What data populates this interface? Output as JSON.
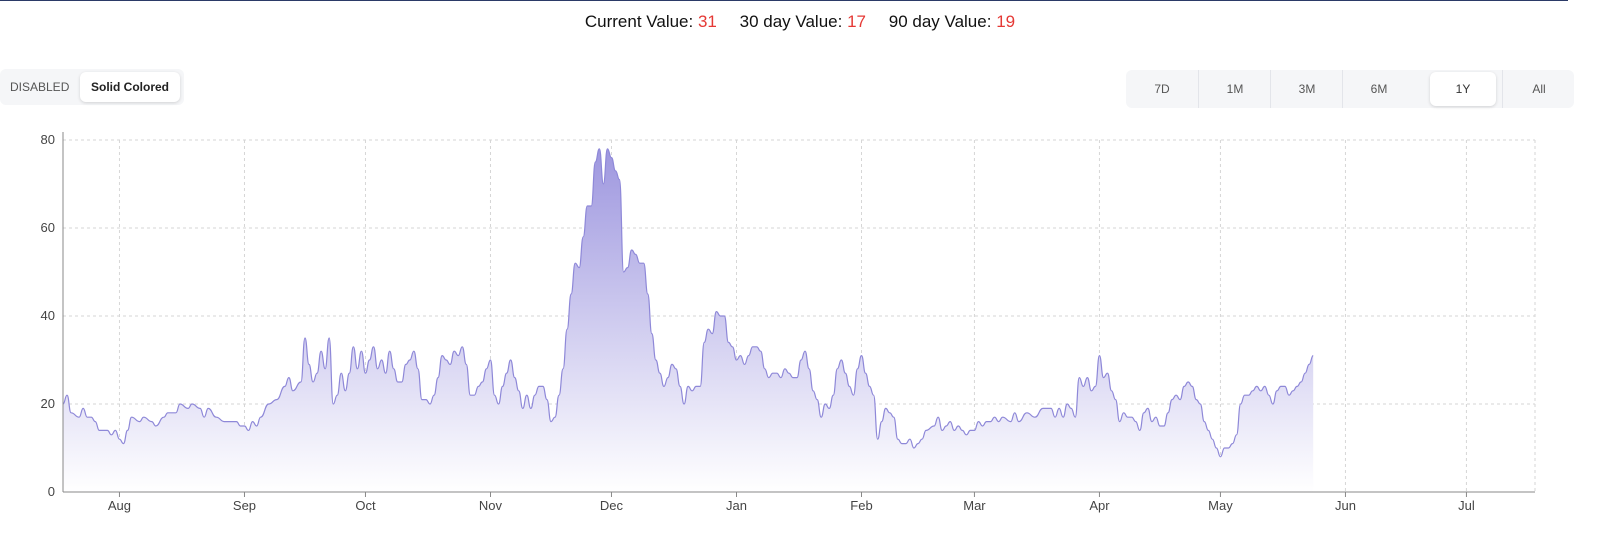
{
  "header": {
    "current_label": "Current Value:",
    "current_value": "31",
    "d30_label": "30 day Value:",
    "d30_value": "17",
    "d90_label": "90 day Value:",
    "d90_value": "19"
  },
  "style_toggle": {
    "disabled_label": "DISABLED",
    "solid_label": "Solid Colored",
    "selected": "Solid Colored"
  },
  "ranges": {
    "items": [
      "7D",
      "1M",
      "3M",
      "6M",
      "1Y",
      "All"
    ],
    "selected": "1Y"
  },
  "colors": {
    "line": "#8e88d8",
    "fill_top": "#9e97df",
    "fill_bottom": "#ffffff",
    "value_accent": "#e53935"
  },
  "chart_data": {
    "type": "area",
    "ylim": [
      0,
      80
    ],
    "yticks": [
      "0",
      "20",
      "40",
      "60",
      "80"
    ],
    "grid": true,
    "x_month_ticks": [
      {
        "label": "Aug",
        "day": 14
      },
      {
        "label": "Sep",
        "day": 45
      },
      {
        "label": "Oct",
        "day": 75
      },
      {
        "label": "Nov",
        "day": 106
      },
      {
        "label": "Dec",
        "day": 136
      },
      {
        "label": "Jan",
        "day": 167
      },
      {
        "label": "Feb",
        "day": 198
      },
      {
        "label": "Mar",
        "day": 226
      },
      {
        "label": "Apr",
        "day": 257
      },
      {
        "label": "May",
        "day": 287
      },
      {
        "label": "Jun",
        "day": 318
      },
      {
        "label": "Jul",
        "day": 348
      }
    ],
    "x_day_range": [
      0,
      365
    ],
    "points": [
      [
        0,
        20
      ],
      [
        1,
        22
      ],
      [
        2,
        18
      ],
      [
        4,
        17
      ],
      [
        5,
        19
      ],
      [
        6,
        17
      ],
      [
        7,
        17
      ],
      [
        8,
        16
      ],
      [
        9,
        14
      ],
      [
        11,
        14
      ],
      [
        12,
        13
      ],
      [
        13,
        14
      ],
      [
        14,
        12
      ],
      [
        15,
        11
      ],
      [
        16,
        14
      ],
      [
        17,
        17
      ],
      [
        19,
        16
      ],
      [
        20,
        17
      ],
      [
        22,
        16
      ],
      [
        23,
        15
      ],
      [
        25,
        17
      ],
      [
        26,
        18
      ],
      [
        28,
        18
      ],
      [
        29,
        20
      ],
      [
        31,
        19
      ],
      [
        32,
        20
      ],
      [
        34,
        19
      ],
      [
        35,
        17
      ],
      [
        36,
        19
      ],
      [
        38,
        17
      ],
      [
        40,
        16
      ],
      [
        43,
        16
      ],
      [
        44,
        15
      ],
      [
        45,
        15
      ],
      [
        46,
        14
      ],
      [
        47,
        16
      ],
      [
        48,
        15
      ],
      [
        49,
        17
      ],
      [
        51,
        20
      ],
      [
        53,
        21
      ],
      [
        55,
        24
      ],
      [
        56,
        26
      ],
      [
        57,
        23
      ],
      [
        59,
        25
      ],
      [
        60,
        35
      ],
      [
        61,
        29
      ],
      [
        62,
        25
      ],
      [
        63,
        27
      ],
      [
        64,
        32
      ],
      [
        65,
        28
      ],
      [
        66,
        35
      ],
      [
        67,
        20
      ],
      [
        68,
        22
      ],
      [
        69,
        27
      ],
      [
        70,
        23
      ],
      [
        71,
        27
      ],
      [
        72,
        33
      ],
      [
        73,
        28
      ],
      [
        74,
        32
      ],
      [
        75,
        27
      ],
      [
        76,
        30
      ],
      [
        77,
        33
      ],
      [
        78,
        28
      ],
      [
        79,
        30
      ],
      [
        80,
        27
      ],
      [
        81,
        32
      ],
      [
        82,
        28
      ],
      [
        83,
        25
      ],
      [
        84,
        25
      ],
      [
        85,
        29
      ],
      [
        86,
        30
      ],
      [
        87,
        32
      ],
      [
        88,
        28
      ],
      [
        89,
        21
      ],
      [
        90,
        21
      ],
      [
        91,
        20
      ],
      [
        92,
        22
      ],
      [
        93,
        26
      ],
      [
        94,
        31
      ],
      [
        95,
        30
      ],
      [
        96,
        29
      ],
      [
        97,
        32
      ],
      [
        98,
        31
      ],
      [
        99,
        33
      ],
      [
        100,
        29
      ],
      [
        101,
        22
      ],
      [
        102,
        22
      ],
      [
        103,
        24
      ],
      [
        104,
        25
      ],
      [
        105,
        28
      ],
      [
        106,
        30
      ],
      [
        107,
        22
      ],
      [
        108,
        20
      ],
      [
        109,
        24
      ],
      [
        110,
        27
      ],
      [
        111,
        30
      ],
      [
        112,
        26
      ],
      [
        113,
        23
      ],
      [
        114,
        19
      ],
      [
        115,
        22
      ],
      [
        116,
        19
      ],
      [
        117,
        22
      ],
      [
        118,
        24
      ],
      [
        119,
        24
      ],
      [
        120,
        21
      ],
      [
        121,
        16
      ],
      [
        122,
        17
      ],
      [
        123,
        22
      ],
      [
        124,
        28
      ],
      [
        125,
        37
      ],
      [
        126,
        45
      ],
      [
        127,
        52
      ],
      [
        128,
        51
      ],
      [
        129,
        58
      ],
      [
        130,
        65
      ],
      [
        131,
        65
      ],
      [
        132,
        75
      ],
      [
        133,
        78
      ],
      [
        134,
        70
      ],
      [
        135,
        78
      ],
      [
        136,
        76
      ],
      [
        137,
        73
      ],
      [
        138,
        71
      ],
      [
        139,
        50
      ],
      [
        140,
        51
      ],
      [
        141,
        55
      ],
      [
        142,
        54
      ],
      [
        143,
        52
      ],
      [
        144,
        52
      ],
      [
        145,
        45
      ],
      [
        146,
        36
      ],
      [
        147,
        30
      ],
      [
        148,
        27
      ],
      [
        149,
        24
      ],
      [
        150,
        26
      ],
      [
        151,
        29
      ],
      [
        152,
        28
      ],
      [
        153,
        24
      ],
      [
        154,
        20
      ],
      [
        155,
        24
      ],
      [
        156,
        23
      ],
      [
        157,
        24
      ],
      [
        158,
        24
      ],
      [
        159,
        34
      ],
      [
        160,
        37
      ],
      [
        161,
        36
      ],
      [
        162,
        41
      ],
      [
        163,
        40
      ],
      [
        164,
        40
      ],
      [
        165,
        34
      ],
      [
        166,
        33
      ],
      [
        167,
        30
      ],
      [
        168,
        31
      ],
      [
        169,
        29
      ],
      [
        170,
        31
      ],
      [
        171,
        33
      ],
      [
        172,
        33
      ],
      [
        173,
        32
      ],
      [
        174,
        28
      ],
      [
        175,
        26
      ],
      [
        176,
        27
      ],
      [
        177,
        27
      ],
      [
        178,
        26
      ],
      [
        179,
        28
      ],
      [
        180,
        27
      ],
      [
        181,
        26
      ],
      [
        182,
        26
      ],
      [
        183,
        30
      ],
      [
        184,
        32
      ],
      [
        185,
        28
      ],
      [
        186,
        23
      ],
      [
        187,
        21
      ],
      [
        188,
        17
      ],
      [
        189,
        20
      ],
      [
        190,
        19
      ],
      [
        191,
        22
      ],
      [
        192,
        28
      ],
      [
        193,
        30
      ],
      [
        194,
        27
      ],
      [
        195,
        24
      ],
      [
        196,
        22
      ],
      [
        197,
        28
      ],
      [
        198,
        31
      ],
      [
        199,
        27
      ],
      [
        200,
        24
      ],
      [
        201,
        22
      ],
      [
        202,
        12
      ],
      [
        203,
        16
      ],
      [
        204,
        19
      ],
      [
        205,
        18
      ],
      [
        206,
        17
      ],
      [
        207,
        12
      ],
      [
        208,
        11
      ],
      [
        209,
        11
      ],
      [
        210,
        12
      ],
      [
        211,
        10
      ],
      [
        212,
        11
      ],
      [
        213,
        12
      ],
      [
        214,
        14
      ],
      [
        216,
        15
      ],
      [
        217,
        17
      ],
      [
        218,
        14
      ],
      [
        219,
        15
      ],
      [
        220,
        16
      ],
      [
        221,
        14
      ],
      [
        222,
        15
      ],
      [
        223,
        14
      ],
      [
        224,
        13
      ],
      [
        225,
        14
      ],
      [
        226,
        14
      ],
      [
        227,
        16
      ],
      [
        228,
        15
      ],
      [
        229,
        16
      ],
      [
        230,
        16
      ],
      [
        231,
        17
      ],
      [
        232,
        16
      ],
      [
        233,
        17
      ],
      [
        235,
        16
      ],
      [
        236,
        18
      ],
      [
        237,
        16
      ],
      [
        239,
        18
      ],
      [
        241,
        17
      ],
      [
        243,
        19
      ],
      [
        245,
        19
      ],
      [
        246,
        17
      ],
      [
        247,
        19
      ],
      [
        248,
        17
      ],
      [
        249,
        20
      ],
      [
        250,
        19
      ],
      [
        251,
        17
      ],
      [
        252,
        26
      ],
      [
        253,
        24
      ],
      [
        254,
        26
      ],
      [
        255,
        23
      ],
      [
        256,
        24
      ],
      [
        257,
        31
      ],
      [
        258,
        26
      ],
      [
        259,
        27
      ],
      [
        260,
        23
      ],
      [
        261,
        21
      ],
      [
        262,
        16
      ],
      [
        263,
        18
      ],
      [
        264,
        17
      ],
      [
        265,
        17
      ],
      [
        266,
        16
      ],
      [
        267,
        14
      ],
      [
        268,
        18
      ],
      [
        269,
        19
      ],
      [
        270,
        16
      ],
      [
        271,
        17
      ],
      [
        272,
        15
      ],
      [
        273,
        15
      ],
      [
        274,
        18
      ],
      [
        275,
        21
      ],
      [
        276,
        22
      ],
      [
        277,
        21
      ],
      [
        278,
        24
      ],
      [
        279,
        25
      ],
      [
        280,
        24
      ],
      [
        281,
        21
      ],
      [
        282,
        20
      ],
      [
        283,
        16
      ],
      [
        284,
        14
      ],
      [
        285,
        12
      ],
      [
        286,
        10
      ],
      [
        287,
        8
      ],
      [
        288,
        10
      ],
      [
        289,
        10
      ],
      [
        290,
        11
      ],
      [
        291,
        13
      ],
      [
        292,
        20
      ],
      [
        293,
        22
      ],
      [
        294,
        22
      ],
      [
        295,
        23
      ],
      [
        296,
        24
      ],
      [
        297,
        23
      ],
      [
        298,
        24
      ],
      [
        299,
        22
      ],
      [
        300,
        20
      ],
      [
        301,
        23
      ],
      [
        302,
        24
      ],
      [
        303,
        24
      ],
      [
        304,
        22
      ],
      [
        305,
        23
      ],
      [
        306,
        24
      ],
      [
        307,
        25
      ],
      [
        308,
        27
      ],
      [
        309,
        29
      ],
      [
        310,
        31
      ]
    ]
  }
}
